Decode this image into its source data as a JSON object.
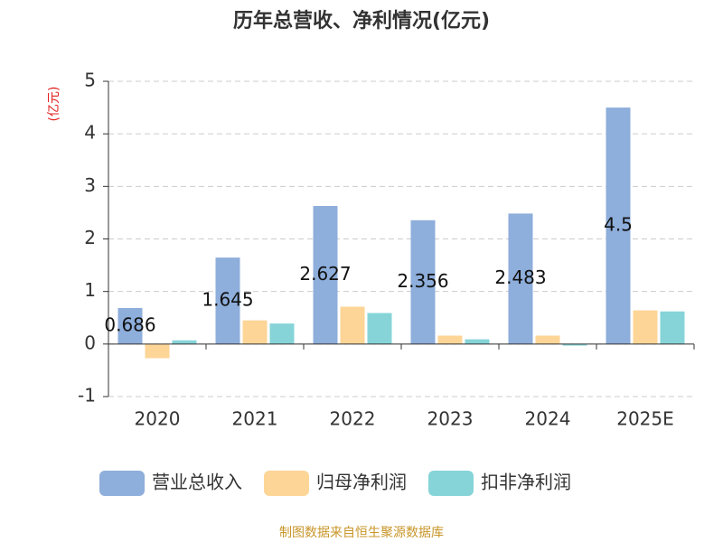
{
  "chart_data": {
    "type": "bar",
    "title": "历年总营收、净利情况(亿元)",
    "y_label": "(亿元)",
    "source": "制图数据来自恒生聚源数据库",
    "categories": [
      "2020",
      "2021",
      "2022",
      "2023",
      "2024",
      "2025E"
    ],
    "series": [
      {
        "name": "营业总收入",
        "color": "#8eaedb",
        "values": [
          0.686,
          1.645,
          2.627,
          2.356,
          2.483,
          4.5
        ],
        "show_labels": true
      },
      {
        "name": "归母净利润",
        "color": "#fdd597",
        "values": [
          -0.27,
          0.45,
          0.71,
          0.16,
          0.16,
          0.64
        ]
      },
      {
        "name": "扣非净利润",
        "color": "#86d4d8",
        "values": [
          0.07,
          0.39,
          0.59,
          0.09,
          -0.03,
          0.62
        ]
      }
    ],
    "ylim": [
      -1,
      5
    ],
    "yticks": [
      -1,
      0,
      1,
      2,
      3,
      4,
      5
    ],
    "grid": true,
    "legend": "bottom"
  }
}
